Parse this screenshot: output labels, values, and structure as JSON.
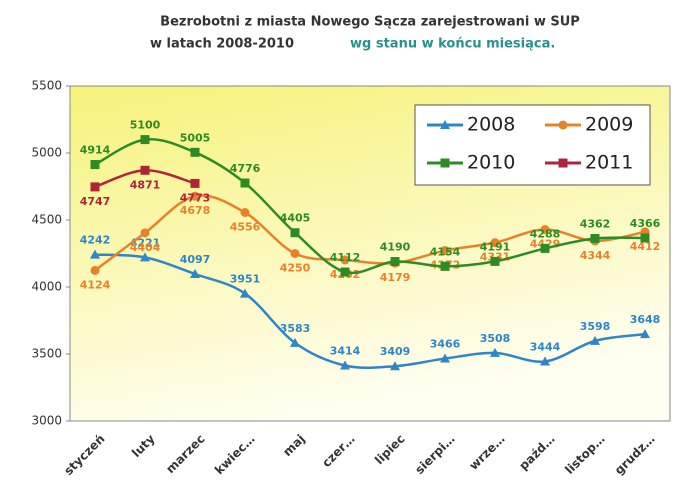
{
  "chart_data": {
    "type": "line",
    "title": "Bezrobotni z miasta Nowego Sącza zarejestrowani w SUP",
    "subtitle": "w latach 2008-2010",
    "subtitle_highlight": "wg stanu w końcu miesiąca.",
    "categories": [
      "styczeń",
      "luty",
      "marzec",
      "kwiec…",
      "maj",
      "czer…",
      "lipiec",
      "sierpi…",
      "wrze…",
      "paźd…",
      "listop…",
      "grudz…"
    ],
    "series": [
      {
        "name": "2008",
        "color": "#2e86c9",
        "marker": "triangle",
        "values": [
          4242,
          4221,
          4097,
          3951,
          3583,
          3414,
          3409,
          3466,
          3508,
          3444,
          3598,
          3648
        ]
      },
      {
        "name": "2009",
        "color": "#e8822a",
        "marker": "circle",
        "values": [
          4124,
          4404,
          4678,
          4556,
          4250,
          4202,
          4179,
          4272,
          4331,
          4429,
          4344,
          4412
        ]
      },
      {
        "name": "2010",
        "color": "#2e8b23",
        "marker": "square",
        "values": [
          4914,
          5100,
          5005,
          4776,
          4405,
          4112,
          4190,
          4154,
          4191,
          4288,
          4362,
          4366
        ]
      },
      {
        "name": "2011",
        "color": "#b0243a",
        "marker": "square",
        "values": [
          4747,
          4871,
          4773,
          null,
          null,
          null,
          null,
          null,
          null,
          null,
          null,
          null
        ]
      }
    ],
    "ylim": [
      3000,
      5500
    ],
    "yticks": [
      3000,
      3500,
      4000,
      4500,
      5000,
      5500
    ],
    "grid": false,
    "legend": "upper right"
  }
}
